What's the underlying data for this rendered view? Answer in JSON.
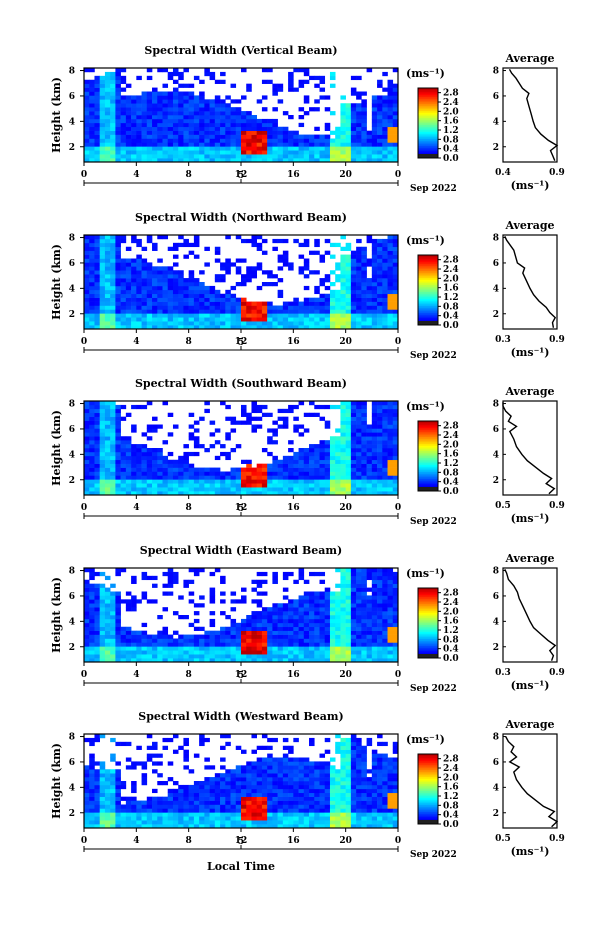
{
  "chart_data": [
    {
      "type": "heatmap",
      "title": "Spectral Width (Vertical Beam)",
      "xlabel": "",
      "ylabel": "Height (km)",
      "x_ticks": [
        "0",
        "4",
        "8",
        "12",
        "16",
        "20",
        "0"
      ],
      "y_ticks": [
        "2",
        "4",
        "6",
        "8"
      ],
      "date_marker": "5",
      "date_label": "Sep 2022",
      "xlim": [
        0,
        24
      ],
      "ylim": [
        0.8,
        8.2
      ],
      "colorbar": {
        "unit": "(ms⁻¹)",
        "ticks": [
          "0.0",
          "0.4",
          "0.8",
          "1.2",
          "1.6",
          "2.0",
          "2.4",
          "2.8"
        ],
        "range": [
          0,
          3.0
        ]
      },
      "average_profile": {
        "title": "Average",
        "xlabel": "(ms⁻¹)",
        "x_ticks": [
          "0.4",
          "0.9"
        ],
        "xlim": [
          0.4,
          0.9
        ],
        "y_ticks": [
          "2",
          "4",
          "6",
          "8"
        ],
        "ylim": [
          0.8,
          8.2
        ],
        "points": [
          [
            0.88,
            0.9
          ],
          [
            0.86,
            1.3
          ],
          [
            0.84,
            1.7
          ],
          [
            0.9,
            2.1
          ],
          [
            0.82,
            2.5
          ],
          [
            0.75,
            3.0
          ],
          [
            0.7,
            3.5
          ],
          [
            0.68,
            4.0
          ],
          [
            0.66,
            4.6
          ],
          [
            0.64,
            5.2
          ],
          [
            0.62,
            5.8
          ],
          [
            0.64,
            6.2
          ],
          [
            0.58,
            6.6
          ],
          [
            0.55,
            7.0
          ],
          [
            0.52,
            7.4
          ],
          [
            0.48,
            7.8
          ],
          [
            0.46,
            8.1
          ]
        ]
      }
    },
    {
      "type": "heatmap",
      "title": "Spectral Width (Northward Beam)",
      "xlabel": "",
      "ylabel": "Height (km)",
      "x_ticks": [
        "0",
        "4",
        "8",
        "12",
        "16",
        "20",
        "0"
      ],
      "y_ticks": [
        "2",
        "4",
        "6",
        "8"
      ],
      "date_marker": "5",
      "date_label": "Sep 2022",
      "xlim": [
        0,
        24
      ],
      "ylim": [
        0.8,
        8.2
      ],
      "colorbar": {
        "unit": "(ms⁻¹)",
        "ticks": [
          "0.0",
          "0.4",
          "0.8",
          "1.2",
          "1.6",
          "2.0",
          "2.4",
          "2.8"
        ],
        "range": [
          0,
          3.0
        ]
      },
      "average_profile": {
        "title": "Average",
        "xlabel": "(ms⁻¹)",
        "x_ticks": [
          "0.3",
          "0.9"
        ],
        "xlim": [
          0.3,
          0.9
        ],
        "y_ticks": [
          "2",
          "4",
          "6",
          "8"
        ],
        "ylim": [
          0.8,
          8.2
        ],
        "points": [
          [
            0.86,
            0.9
          ],
          [
            0.85,
            1.3
          ],
          [
            0.88,
            1.7
          ],
          [
            0.82,
            2.1
          ],
          [
            0.78,
            2.5
          ],
          [
            0.7,
            3.0
          ],
          [
            0.64,
            3.5
          ],
          [
            0.6,
            4.0
          ],
          [
            0.56,
            4.6
          ],
          [
            0.52,
            5.2
          ],
          [
            0.54,
            5.6
          ],
          [
            0.46,
            6.0
          ],
          [
            0.44,
            6.5
          ],
          [
            0.42,
            7.0
          ],
          [
            0.38,
            7.4
          ],
          [
            0.34,
            7.8
          ],
          [
            0.32,
            8.1
          ]
        ]
      }
    },
    {
      "type": "heatmap",
      "title": "Spectral Width (Southward Beam)",
      "xlabel": "",
      "ylabel": "Height (km)",
      "x_ticks": [
        "0",
        "4",
        "8",
        "12",
        "16",
        "20",
        "0"
      ],
      "y_ticks": [
        "2",
        "4",
        "6",
        "8"
      ],
      "date_marker": "5",
      "date_label": "Sep 2022",
      "xlim": [
        0,
        24
      ],
      "ylim": [
        0.8,
        8.2
      ],
      "colorbar": {
        "unit": "(ms⁻¹)",
        "ticks": [
          "0.0",
          "0.4",
          "0.8",
          "1.2",
          "1.6",
          "2.0",
          "2.4",
          "2.8"
        ],
        "range": [
          0,
          3.0
        ]
      },
      "average_profile": {
        "title": "Average",
        "xlabel": "(ms⁻¹)",
        "x_ticks": [
          "0.5",
          "0.9"
        ],
        "xlim": [
          0.5,
          0.9
        ],
        "y_ticks": [
          "2",
          "4",
          "6",
          "8"
        ],
        "ylim": [
          0.8,
          8.2
        ],
        "points": [
          [
            0.84,
            0.9
          ],
          [
            0.88,
            1.3
          ],
          [
            0.82,
            1.7
          ],
          [
            0.86,
            2.1
          ],
          [
            0.8,
            2.5
          ],
          [
            0.74,
            3.0
          ],
          [
            0.68,
            3.5
          ],
          [
            0.64,
            4.0
          ],
          [
            0.6,
            4.6
          ],
          [
            0.58,
            5.2
          ],
          [
            0.55,
            5.8
          ],
          [
            0.6,
            6.2
          ],
          [
            0.54,
            6.6
          ],
          [
            0.56,
            7.0
          ],
          [
            0.52,
            7.4
          ],
          [
            0.5,
            7.8
          ],
          [
            0.5,
            8.1
          ]
        ]
      }
    },
    {
      "type": "heatmap",
      "title": "Spectral Width (Eastward Beam)",
      "xlabel": "",
      "ylabel": "Height (km)",
      "x_ticks": [
        "0",
        "4",
        "8",
        "12",
        "16",
        "20",
        "0"
      ],
      "y_ticks": [
        "2",
        "4",
        "6",
        "8"
      ],
      "date_marker": "5",
      "date_label": "Sep 2022",
      "xlim": [
        0,
        24
      ],
      "ylim": [
        0.8,
        8.2
      ],
      "colorbar": {
        "unit": "(ms⁻¹)",
        "ticks": [
          "0.0",
          "0.4",
          "0.8",
          "1.2",
          "1.6",
          "2.0",
          "2.4",
          "2.8"
        ],
        "range": [
          0,
          3.0
        ]
      },
      "average_profile": {
        "title": "Average",
        "xlabel": "(ms⁻¹)",
        "x_ticks": [
          "0.3",
          "0.9"
        ],
        "xlim": [
          0.3,
          0.9
        ],
        "y_ticks": [
          "2",
          "4",
          "6",
          "8"
        ],
        "ylim": [
          0.8,
          8.2
        ],
        "points": [
          [
            0.84,
            0.9
          ],
          [
            0.86,
            1.3
          ],
          [
            0.82,
            1.7
          ],
          [
            0.88,
            2.1
          ],
          [
            0.8,
            2.5
          ],
          [
            0.72,
            3.0
          ],
          [
            0.64,
            3.5
          ],
          [
            0.6,
            4.0
          ],
          [
            0.56,
            4.6
          ],
          [
            0.52,
            5.2
          ],
          [
            0.48,
            5.8
          ],
          [
            0.46,
            6.3
          ],
          [
            0.42,
            6.8
          ],
          [
            0.36,
            7.3
          ],
          [
            0.34,
            7.8
          ],
          [
            0.32,
            8.1
          ]
        ]
      }
    },
    {
      "type": "heatmap",
      "title": "Spectral Width (Westward Beam)",
      "xlabel": "Local Time",
      "ylabel": "Height (km)",
      "x_ticks": [
        "0",
        "4",
        "8",
        "12",
        "16",
        "20",
        "0"
      ],
      "y_ticks": [
        "2",
        "4",
        "6",
        "8"
      ],
      "date_marker": "5",
      "date_label": "Sep 2022",
      "xlim": [
        0,
        24
      ],
      "ylim": [
        0.8,
        8.2
      ],
      "colorbar": {
        "unit": "(ms⁻¹)",
        "ticks": [
          "0.0",
          "0.4",
          "0.8",
          "1.2",
          "1.6",
          "2.0",
          "2.4",
          "2.8"
        ],
        "range": [
          0,
          3.0
        ]
      },
      "average_profile": {
        "title": "Average",
        "xlabel": "(ms⁻¹)",
        "x_ticks": [
          "0.5",
          "0.9"
        ],
        "xlim": [
          0.5,
          0.9
        ],
        "y_ticks": [
          "2",
          "4",
          "6",
          "8"
        ],
        "ylim": [
          0.8,
          8.2
        ],
        "points": [
          [
            0.86,
            0.9
          ],
          [
            0.9,
            1.3
          ],
          [
            0.84,
            1.7
          ],
          [
            0.88,
            2.1
          ],
          [
            0.8,
            2.5
          ],
          [
            0.74,
            3.0
          ],
          [
            0.68,
            3.5
          ],
          [
            0.64,
            4.0
          ],
          [
            0.6,
            4.6
          ],
          [
            0.58,
            5.2
          ],
          [
            0.62,
            5.6
          ],
          [
            0.55,
            6.0
          ],
          [
            0.6,
            6.4
          ],
          [
            0.56,
            6.8
          ],
          [
            0.58,
            7.2
          ],
          [
            0.54,
            7.6
          ],
          [
            0.52,
            8.0
          ]
        ]
      }
    }
  ]
}
